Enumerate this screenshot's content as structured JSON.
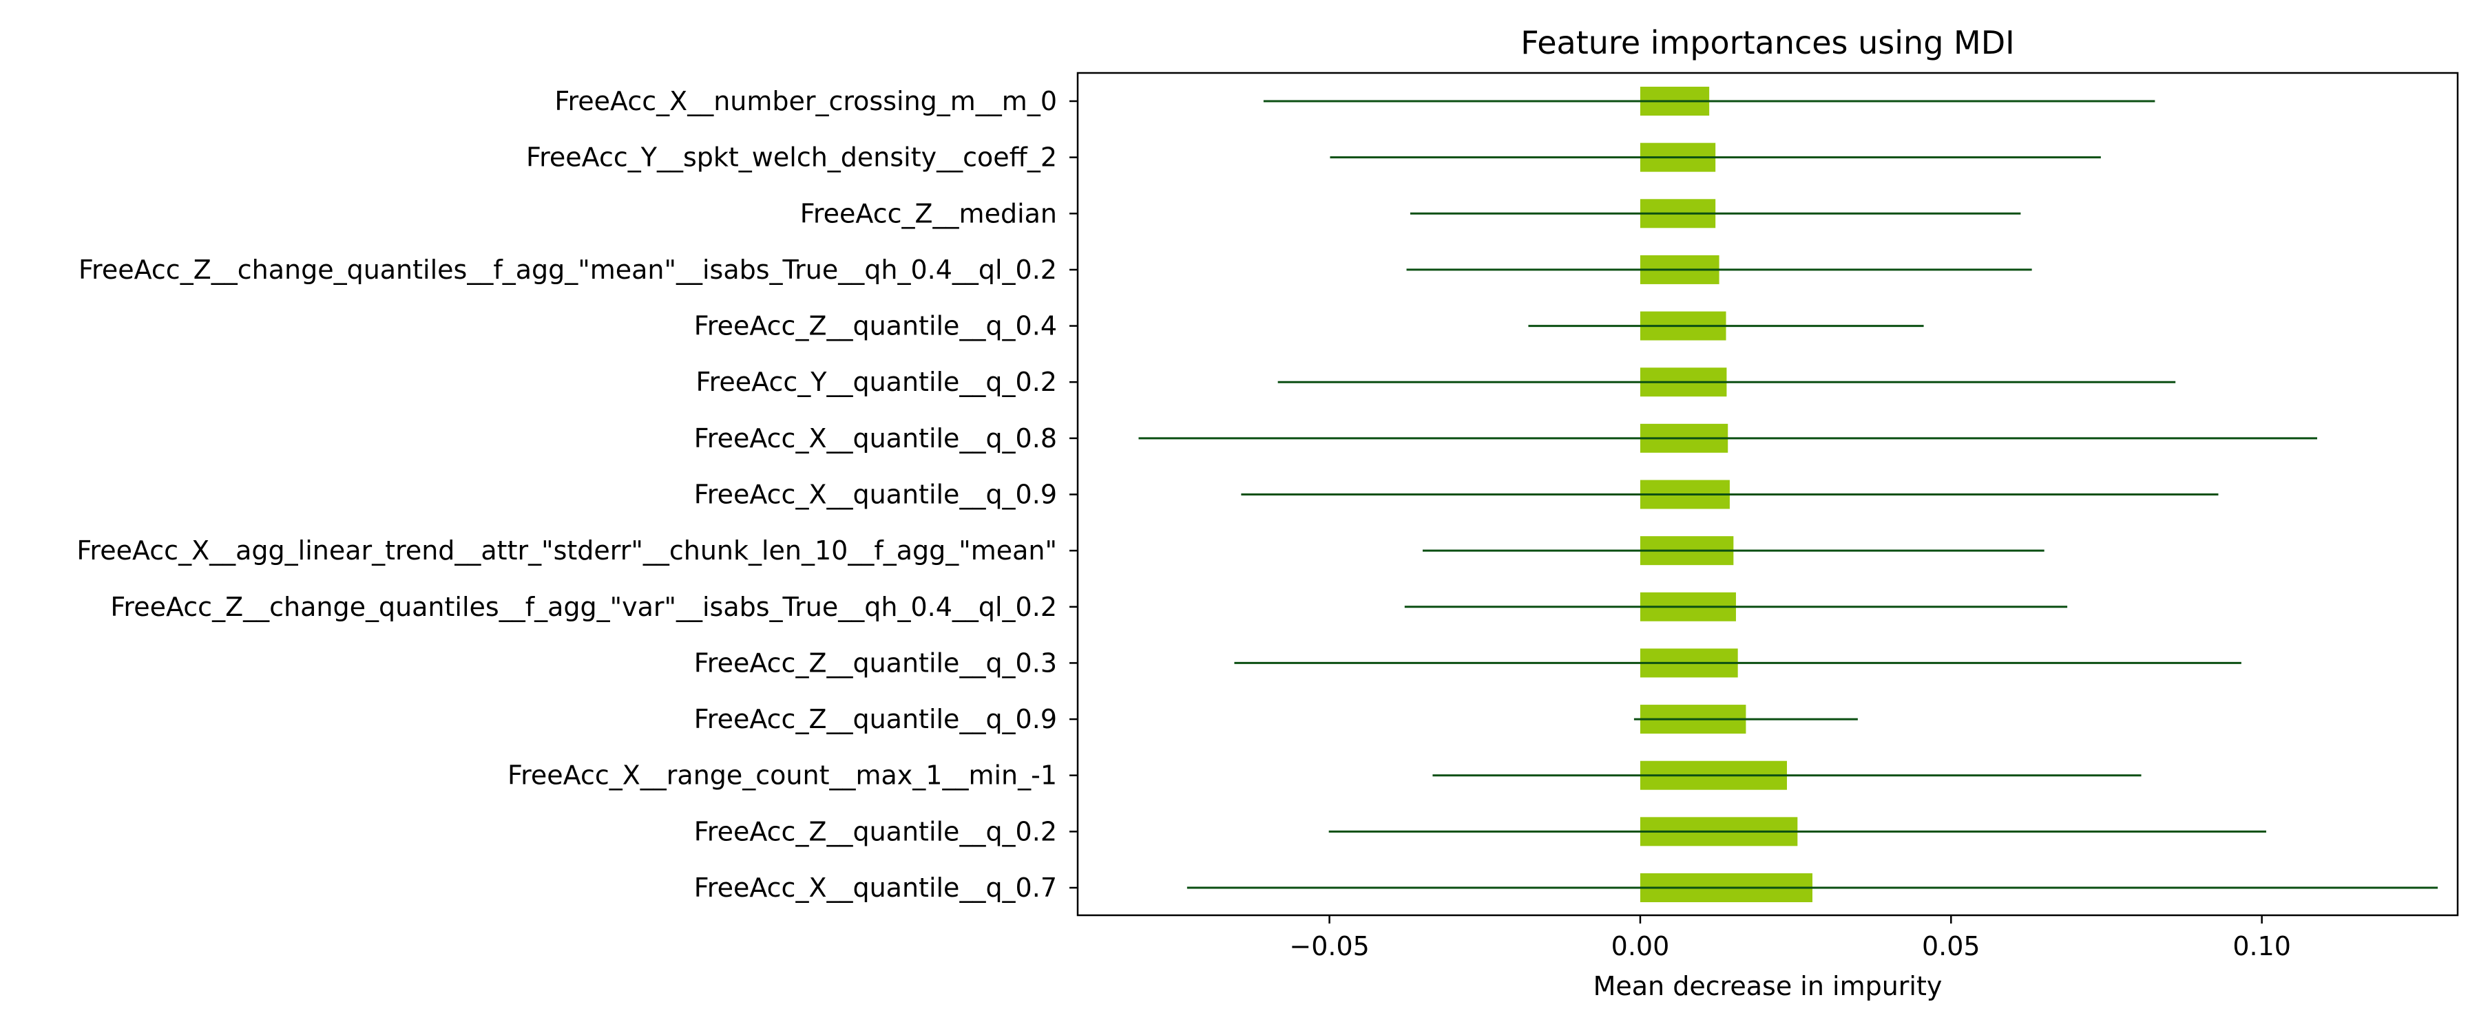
{
  "chart_data": {
    "type": "bar",
    "orientation": "horizontal",
    "title": "Feature importances using MDI",
    "xlabel": "Mean decrease in impurity",
    "ylabel": "",
    "xlim": [
      -0.0905,
      0.1315
    ],
    "xticks": [
      -0.05,
      0.0,
      0.05,
      0.1
    ],
    "xtick_labels": [
      "−0.05",
      "0.00",
      "0.05",
      "0.10"
    ],
    "grid": false,
    "legend": "none",
    "colors": {
      "bar": "#97c80c",
      "error_bar": "#0b4f13",
      "axis": "#000000"
    },
    "categories": [
      "FreeAcc_X__number_crossing_m__m_0",
      "FreeAcc_Y__spkt_welch_density__coeff_2",
      "FreeAcc_Z__median",
      "FreeAcc_Z__change_quantiles__f_agg_\"mean\"__isabs_True__qh_0.4__ql_0.2",
      "FreeAcc_Z__quantile__q_0.4",
      "FreeAcc_Y__quantile__q_0.2",
      "FreeAcc_X__quantile__q_0.8",
      "FreeAcc_X__quantile__q_0.9",
      "FreeAcc_X__agg_linear_trend__attr_\"stderr\"__chunk_len_10__f_agg_\"mean\"",
      "FreeAcc_Z__change_quantiles__f_agg_\"var\"__isabs_True__qh_0.4__ql_0.2",
      "FreeAcc_Z__quantile__q_0.3",
      "FreeAcc_Z__quantile__q_0.9",
      "FreeAcc_X__range_count__max_1__min_-1",
      "FreeAcc_Z__quantile__q_0.2",
      "FreeAcc_X__quantile__q_0.7"
    ],
    "values": [
      0.0111,
      0.0121,
      0.0121,
      0.0127,
      0.0138,
      0.0139,
      0.0141,
      0.0144,
      0.015,
      0.0154,
      0.0157,
      0.017,
      0.0236,
      0.0253,
      0.0277
    ],
    "errors": [
      0.0717,
      0.062,
      0.0491,
      0.0503,
      0.0318,
      0.0722,
      0.0948,
      0.0786,
      0.05,
      0.0533,
      0.081,
      0.018,
      0.057,
      0.0754,
      0.1006
    ]
  }
}
